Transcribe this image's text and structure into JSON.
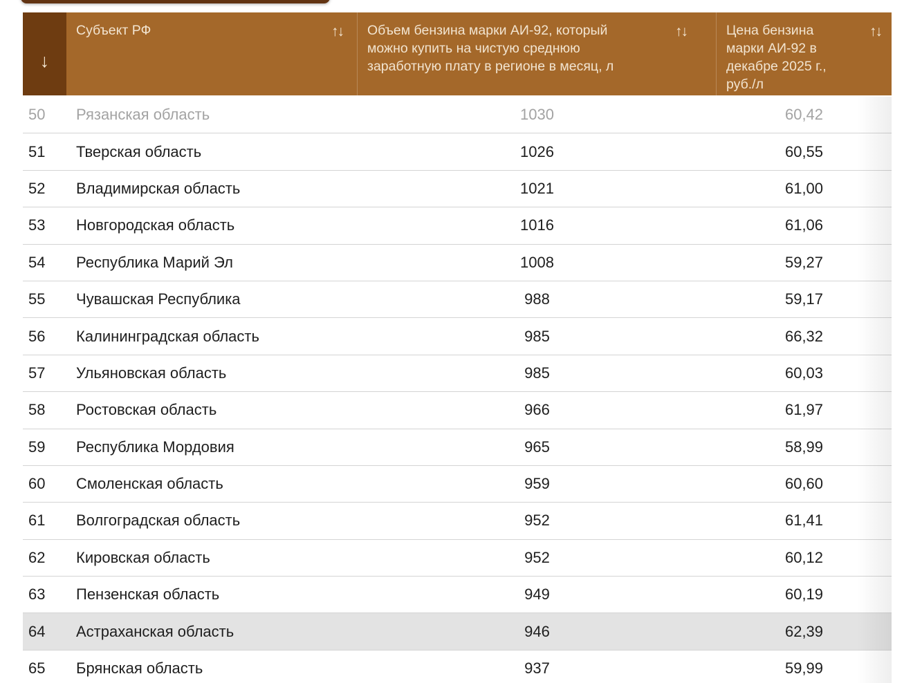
{
  "colors": {
    "header-bg": "#a4682a",
    "header-dark-bg": "#6e3c11",
    "header-text": "#f2e4d0",
    "topbar-bg": "#623413",
    "row-text": "#1e1e1e",
    "faded-text": "#a3a3a3",
    "separator": "#d4d4d4",
    "highlight-bg": "#e3e3e3",
    "page-bg": "#ffffff"
  },
  "icons": {
    "sort_desc": "↓",
    "sort_both": "↑↓"
  },
  "table": {
    "columns": {
      "rank": "",
      "region": "Субъект РФ",
      "volume": "Объем бензина марки АИ-92, который можно купить на чистую среднюю заработную плату в регионе в месяц, л",
      "price": "Цена бензина марки АИ-92 в декабре 2025 г., руб./л"
    },
    "rows": [
      {
        "rank": "50",
        "region": "Рязанская область",
        "volume": "1030",
        "price": "60,42",
        "state": "faded"
      },
      {
        "rank": "51",
        "region": "Тверская область",
        "volume": "1026",
        "price": "60,55",
        "state": "normal"
      },
      {
        "rank": "52",
        "region": "Владимирская область",
        "volume": "1021",
        "price": "61,00",
        "state": "normal"
      },
      {
        "rank": "53",
        "region": "Новгородская область",
        "volume": "1016",
        "price": "61,06",
        "state": "normal"
      },
      {
        "rank": "54",
        "region": "Республика Марий Эл",
        "volume": "1008",
        "price": "59,27",
        "state": "normal"
      },
      {
        "rank": "55",
        "region": "Чувашская Республика",
        "volume": "988",
        "price": "59,17",
        "state": "normal"
      },
      {
        "rank": "56",
        "region": "Калининградская область",
        "volume": "985",
        "price": "66,32",
        "state": "normal"
      },
      {
        "rank": "57",
        "region": "Ульяновская область",
        "volume": "985",
        "price": "60,03",
        "state": "normal"
      },
      {
        "rank": "58",
        "region": "Ростовская область",
        "volume": "966",
        "price": "61,97",
        "state": "normal"
      },
      {
        "rank": "59",
        "region": "Республика Мордовия",
        "volume": "965",
        "price": "58,99",
        "state": "normal"
      },
      {
        "rank": "60",
        "region": "Смоленская область",
        "volume": "959",
        "price": "60,60",
        "state": "normal"
      },
      {
        "rank": "61",
        "region": "Волгоградская область",
        "volume": "952",
        "price": "61,41",
        "state": "normal"
      },
      {
        "rank": "62",
        "region": "Кировская область",
        "volume": "952",
        "price": "60,12",
        "state": "normal"
      },
      {
        "rank": "63",
        "region": "Пензенская область",
        "volume": "949",
        "price": "60,19",
        "state": "normal"
      },
      {
        "rank": "64",
        "region": "Астраханская область",
        "volume": "946",
        "price": "62,39",
        "state": "highlighted"
      },
      {
        "rank": "65",
        "region": "Брянская область",
        "volume": "937",
        "price": "59,99",
        "state": "normal"
      }
    ]
  }
}
